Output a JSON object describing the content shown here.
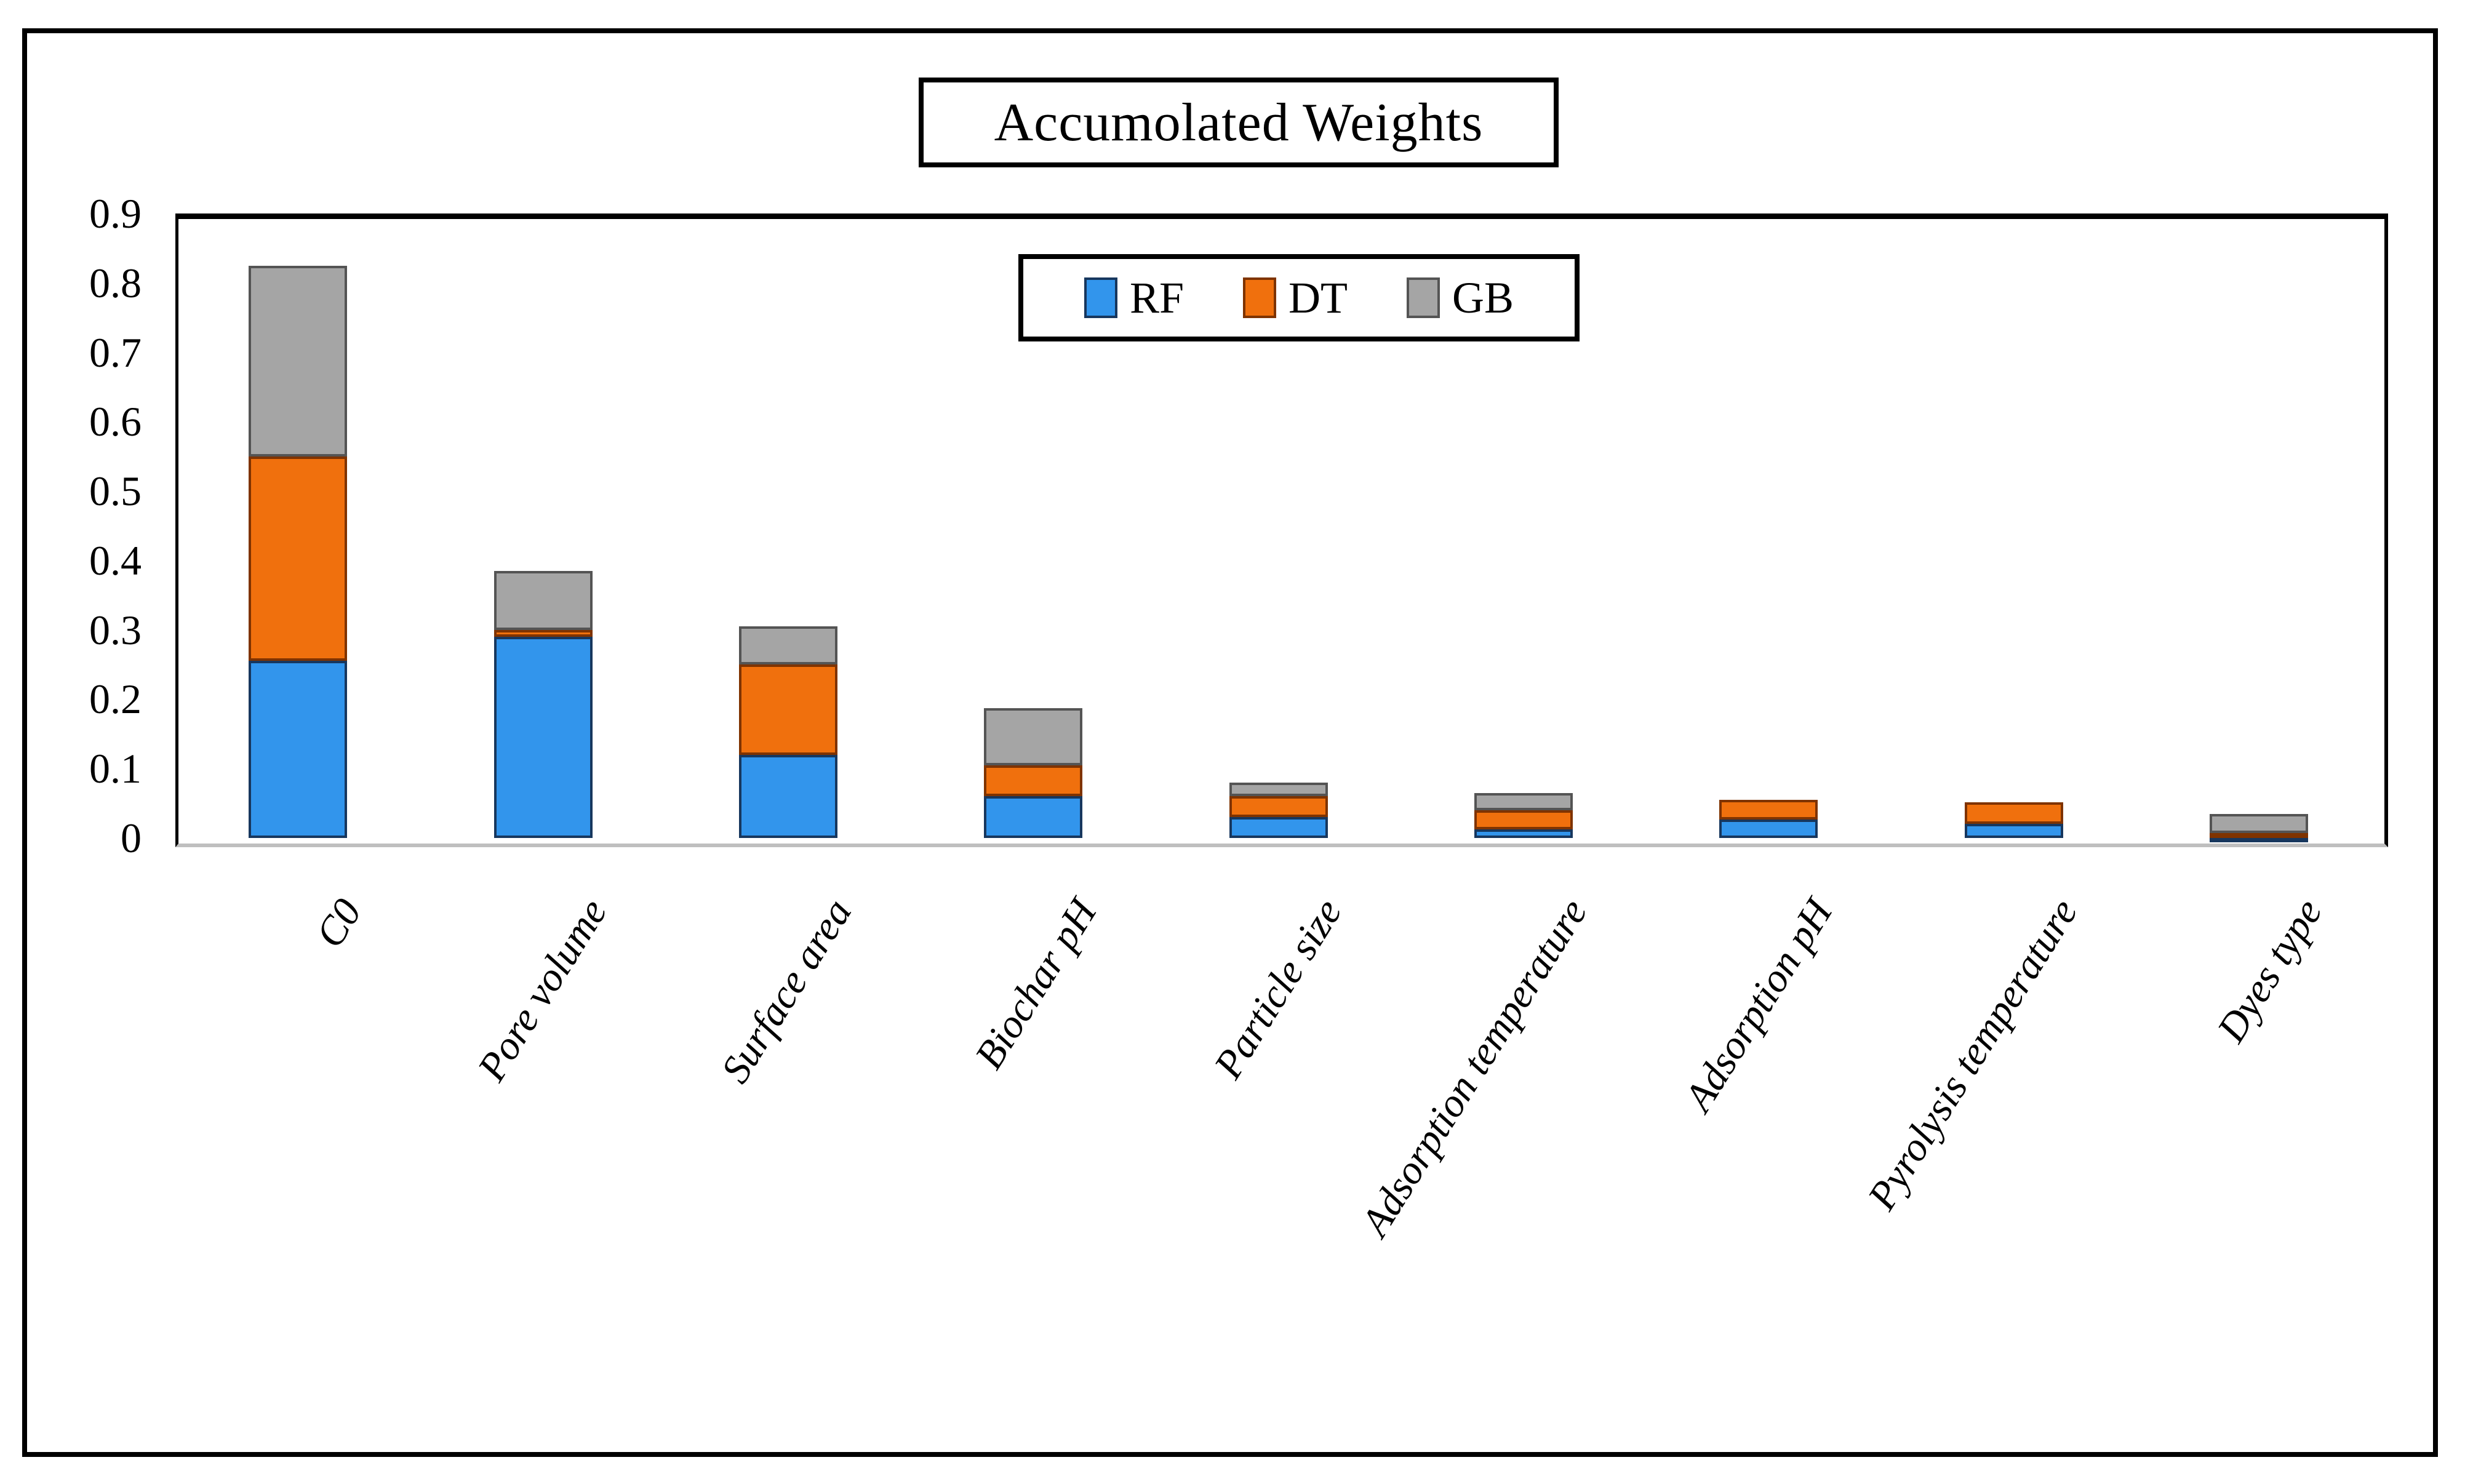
{
  "chart_data": {
    "type": "bar",
    "stacked": true,
    "title": "Accumolated Weights",
    "categories": [
      "C0",
      "Pore volume",
      "Surface area",
      "Biochar pH",
      "Particle size",
      "Adsorption temperature",
      "Adsorption pH",
      "Pyrolysis temperature",
      "Dyes type"
    ],
    "series": [
      {
        "name": "RF",
        "key": "rf",
        "color": "#3295ec",
        "border": "#17375e",
        "values": [
          0.255,
          0.29,
          0.12,
          0.06,
          0.03,
          0.012,
          0.027,
          0.02,
          0.001
        ]
      },
      {
        "name": "DT",
        "key": "dt",
        "color": "#f0700d",
        "border": "#7f3300",
        "values": [
          0.295,
          0.01,
          0.13,
          0.045,
          0.03,
          0.028,
          0.028,
          0.031,
          0.006
        ]
      },
      {
        "name": "GB",
        "key": "gb",
        "color": "#a5a5a5",
        "border": "#545454",
        "values": [
          0.275,
          0.085,
          0.055,
          0.082,
          0.02,
          0.025,
          0.0,
          0.0,
          0.028
        ]
      }
    ],
    "xlabel": "",
    "ylabel": "",
    "ylim": [
      0,
      0.9
    ],
    "yticks": [
      "0",
      "0.1",
      "0.2",
      "0.3",
      "0.4",
      "0.5",
      "0.6",
      "0.7",
      "0.8",
      "0.9"
    ],
    "grid": false,
    "legend_position": "top-center-inside"
  }
}
